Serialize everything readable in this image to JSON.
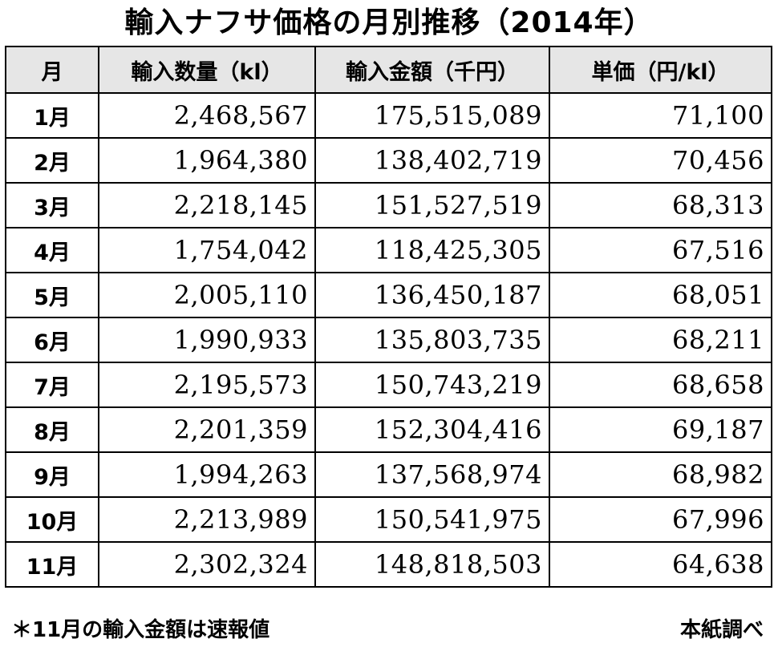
{
  "title": "輸入ナフサ価格の月別推移（2014年）",
  "table": {
    "headers": [
      "月",
      "輸入数量（kl）",
      "輸入金額（千円）",
      "単価（円/kl）"
    ],
    "rows": [
      {
        "month": "1月",
        "quantity": "2,468,567",
        "amount": "175,515,089",
        "unit_price": "71,100"
      },
      {
        "month": "2月",
        "quantity": "1,964,380",
        "amount": "138,402,719",
        "unit_price": "70,456"
      },
      {
        "month": "3月",
        "quantity": "2,218,145",
        "amount": "151,527,519",
        "unit_price": "68,313"
      },
      {
        "month": "4月",
        "quantity": "1,754,042",
        "amount": "118,425,305",
        "unit_price": "67,516"
      },
      {
        "month": "5月",
        "quantity": "2,005,110",
        "amount": "136,450,187",
        "unit_price": "68,051"
      },
      {
        "month": "6月",
        "quantity": "1,990,933",
        "amount": "135,803,735",
        "unit_price": "68,211"
      },
      {
        "month": "7月",
        "quantity": "2,195,573",
        "amount": "150,743,219",
        "unit_price": "68,658"
      },
      {
        "month": "8月",
        "quantity": "2,201,359",
        "amount": "152,304,416",
        "unit_price": "69,187"
      },
      {
        "month": "9月",
        "quantity": "1,994,263",
        "amount": "137,568,974",
        "unit_price": "68,982"
      },
      {
        "month": "10月",
        "quantity": "2,213,989",
        "amount": "150,541,975",
        "unit_price": "67,996"
      },
      {
        "month": "11月",
        "quantity": "2,302,324",
        "amount": "148,818,503",
        "unit_price": "64,638"
      }
    ]
  },
  "footnote": "＊11月の輸入金額は速報値",
  "source": "本紙調べ"
}
